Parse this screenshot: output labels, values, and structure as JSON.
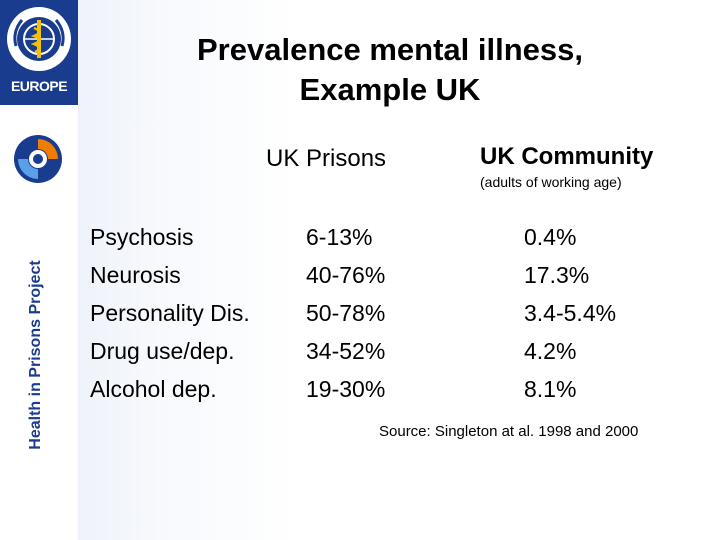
{
  "slide": {
    "title_line1": "Prevalence mental illness,",
    "title_line2": "Example UK",
    "column_prisons": "UK Prisons",
    "column_community": "UK Community",
    "community_note": "(adults of working age)",
    "source": "Source: Singleton at al. 1998 and 2000"
  },
  "sidebar": {
    "region_label": "EUROPE",
    "project_label": "Health in Prisons Project",
    "logo_icon": "who-emblem-icon",
    "project_icon": "hipp-swirl-icon"
  },
  "rows": [
    {
      "condition": "Psychosis",
      "prisons": "6-13%",
      "community": "0.4%"
    },
    {
      "condition": "Neurosis",
      "prisons": "40-76%",
      "community": "17.3%"
    },
    {
      "condition": "Personality Dis.",
      "prisons": "50-78%",
      "community": "3.4-5.4%"
    },
    {
      "condition": "Drug use/dep.",
      "prisons": "34-52%",
      "community": "4.2%"
    },
    {
      "condition": "Alcohol dep.",
      "prisons": "19-30%",
      "community": "8.1%"
    }
  ],
  "colors": {
    "brand_blue": "#1a3c8f",
    "logo_yellow": "#f2c200",
    "swirl_orange": "#f07d00"
  }
}
